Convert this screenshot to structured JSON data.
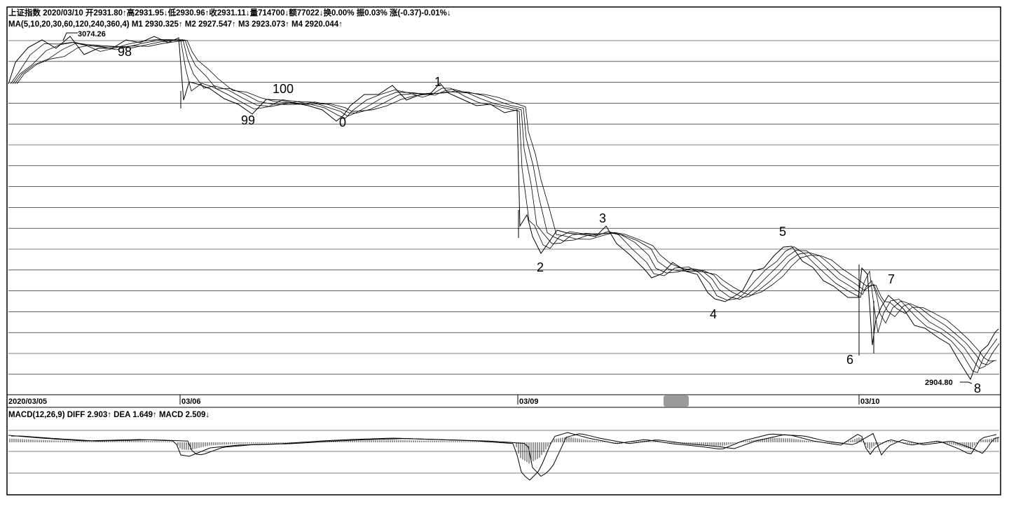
{
  "header": {
    "info_line": "上证指数 2020/03/10 开2931.80↑高2931.95↓低2930.96↑收2931.11↓量714700↓额77022↓换0.00% 振0.03% 涨(-0.37)-0.01%↓",
    "ma_line": "MA(5,10,20,30,60,120,240,360,4)  M1 2930.325↑  M2 2927.547↑  M3 2923.073↑  M4 2920.044↑"
  },
  "macd": {
    "label": "MACD(12,26,9)  DIFF 2.903↑  DEA 1.649↑  MACD 2.509↓"
  },
  "date_labels": [
    "2020/03/05",
    "03/06",
    "03/09",
    "03/10"
  ],
  "price_labels": {
    "high": "3074.26",
    "low": "2904.80"
  },
  "wave_labels": [
    "98",
    "99",
    "100",
    "0",
    "1",
    "2",
    "3",
    "4",
    "5",
    "6",
    "7",
    "8"
  ],
  "colors": {
    "price": "#000000",
    "grid": "#000000",
    "scrollbar": "#9a9a9a"
  },
  "chart_data": {
    "type": "line",
    "title": "上证指数",
    "ylabel": "",
    "xlabel": "",
    "y_low": 2904.8,
    "y_high": 3074.26,
    "x": [
      "2020/03/05",
      "03/06",
      "03/09",
      "03/10"
    ],
    "series": [
      {
        "name": "M1",
        "last": 2930.325
      },
      {
        "name": "M2",
        "last": 2927.547
      },
      {
        "name": "M3",
        "last": 2923.073
      },
      {
        "name": "M4",
        "last": 2920.044
      }
    ],
    "macd": {
      "DIFF": 2.903,
      "DEA": 1.649,
      "MACD": 2.509
    },
    "grid": true
  }
}
